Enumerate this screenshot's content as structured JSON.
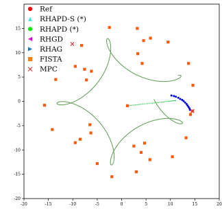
{
  "chart_data": {
    "type": "line",
    "xlim": [
      -20,
      20
    ],
    "ylim": [
      -20,
      20
    ],
    "x_ticks": [
      -20,
      -15,
      -10,
      -5,
      0,
      5,
      10,
      15,
      20
    ],
    "y_ticks": [
      -20,
      -15,
      -10,
      -5,
      0,
      5,
      10,
      15
    ],
    "grid": false,
    "legend_position": "top-left",
    "legend": [
      {
        "label": "Ref",
        "marker": "circle",
        "color": "#ff0000"
      },
      {
        "label": "RHAPD-S (*)",
        "marker": "triangle-up",
        "color": "#4ee0e0"
      },
      {
        "label": "RHAPD (*)",
        "marker": "circle",
        "color": "#00ee00"
      },
      {
        "label": "RHGD",
        "marker": "triangle-left",
        "color": "#e600e6"
      },
      {
        "label": "RHAG",
        "marker": "triangle-right",
        "color": "#1f77b4"
      },
      {
        "label": "FISTA",
        "marker": "square",
        "color": "#ff7f0e"
      },
      {
        "label": "MPC",
        "marker": "x",
        "color": "#e03030"
      }
    ],
    "series": [
      {
        "label": "Ref",
        "style": "curve",
        "color": "#1a8a2a",
        "curve": {
          "R": 12.5,
          "r": 2.75,
          "d": 3.5,
          "loops": 5,
          "phase_deg": 15
        }
      },
      {
        "label": "FISTA",
        "style": "markers",
        "color": "#ff5a0a",
        "points": [
          [
            3.2,
            15.0
          ],
          [
            -2.5,
            15.2
          ],
          [
            -8.2,
            11.5
          ],
          [
            -9.5,
            7.2
          ],
          [
            -13.5,
            4.5
          ],
          [
            -15.8,
            -0.8
          ],
          [
            -14.2,
            -5.8
          ],
          [
            -9.5,
            -8.5
          ],
          [
            -6.5,
            -4.8
          ],
          [
            -6.3,
            -6.5
          ],
          [
            -8.5,
            -7.8
          ],
          [
            -7.2,
            4.4
          ],
          [
            -6.2,
            6.2
          ],
          [
            -7.6,
            6.6
          ],
          [
            -5.0,
            -12.8
          ],
          [
            -2.0,
            -15.5
          ],
          [
            3.0,
            -14.5
          ],
          [
            5.8,
            -12.0
          ],
          [
            4.0,
            -10.5
          ],
          [
            2.5,
            -9.2
          ],
          [
            4.7,
            -8.6
          ],
          [
            10.4,
            -11.4
          ],
          [
            13.2,
            -7.5
          ],
          [
            14.5,
            -2.0
          ],
          [
            14.1,
            -2.7
          ],
          [
            14.6,
            3.3
          ],
          [
            13.7,
            7.8
          ],
          [
            9.5,
            12.2
          ],
          [
            5.9,
            13.0
          ],
          [
            4.5,
            12.5
          ],
          [
            3.3,
            9.8
          ],
          [
            4.2,
            7.8
          ],
          [
            1.2,
            -0.9
          ]
        ]
      },
      {
        "label": "RHAPD (*)",
        "style": "dotted-trail",
        "color": "#22cc44",
        "points": [
          [
            1.4,
            -0.9
          ],
          [
            4.0,
            -0.6
          ],
          [
            7.0,
            -0.3
          ],
          [
            9.5,
            0.0
          ],
          [
            11.3,
            0.2
          ]
        ]
      },
      {
        "label": "RHAG",
        "style": "dots",
        "color": "#0000e0",
        "points": [
          [
            10.2,
            1.2
          ],
          [
            10.7,
            1.1
          ],
          [
            11.1,
            0.95
          ],
          [
            11.6,
            0.75
          ],
          [
            12.0,
            0.5
          ],
          [
            12.4,
            0.3
          ],
          [
            12.7,
            0.05
          ],
          [
            13.0,
            -0.25
          ],
          [
            13.3,
            -0.55
          ],
          [
            13.5,
            -0.85
          ],
          [
            13.7,
            -1.15
          ],
          [
            13.9,
            -1.45
          ],
          [
            14.0,
            -1.75
          ]
        ]
      },
      {
        "label": "MPC",
        "style": "x-markers",
        "color": "#e03030",
        "points": [
          [
            -10.1,
            11.8
          ],
          [
            14.5,
            -2.0
          ]
        ]
      }
    ]
  }
}
